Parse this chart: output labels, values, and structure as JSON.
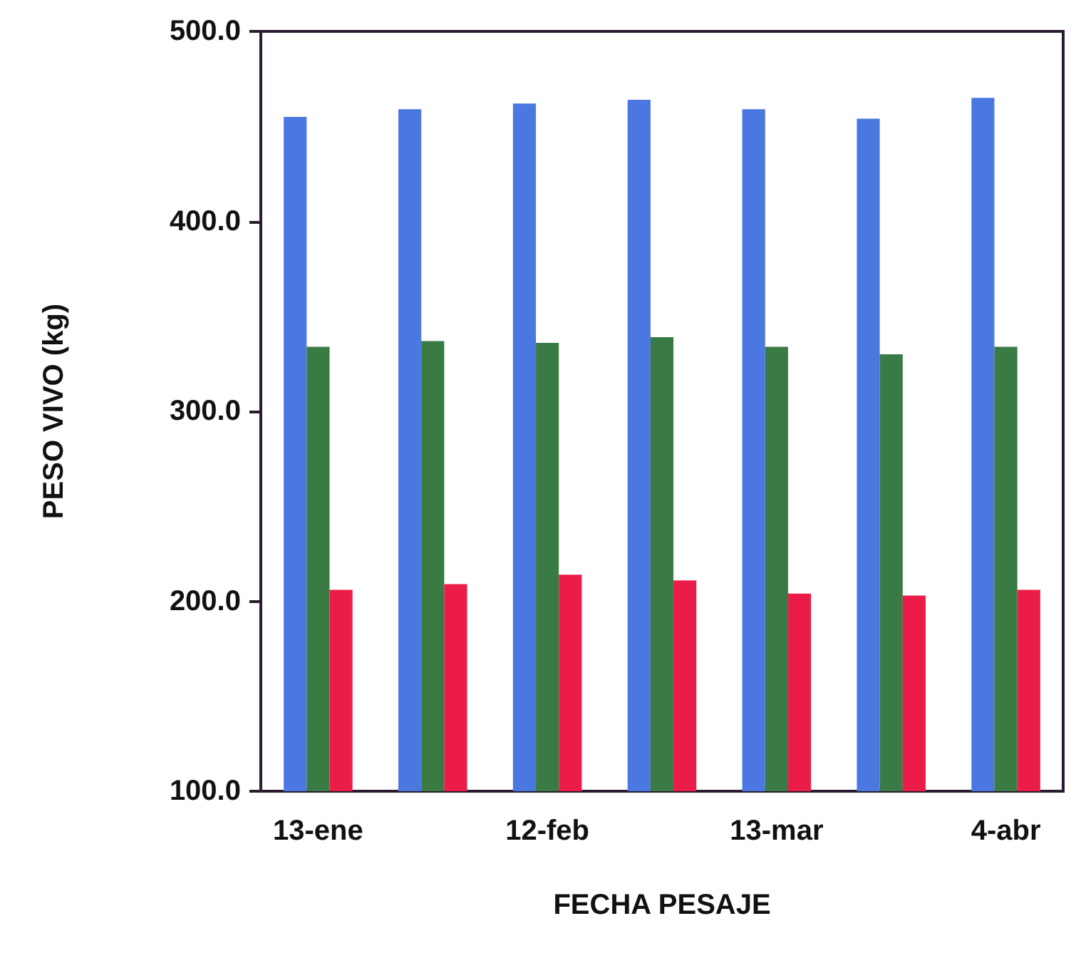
{
  "chart_data": {
    "type": "bar",
    "xlabel": "FECHA PESAJE",
    "ylabel": "PESO VIVO (kg)",
    "categories": [
      "13-ene",
      null,
      "12-feb",
      null,
      "13-mar",
      null,
      "4-abr"
    ],
    "series": [
      {
        "color": "#4a78e0",
        "values": [
          455,
          459,
          462,
          464,
          459,
          454,
          465
        ]
      },
      {
        "color": "#3a7a45",
        "values": [
          334,
          337,
          336,
          339,
          334,
          330,
          334
        ]
      },
      {
        "color": "#ec1c48",
        "values": [
          206,
          209,
          214,
          211,
          204,
          203,
          206
        ]
      }
    ],
    "ylim": [
      100,
      500
    ],
    "yticks": [
      {
        "value": 100,
        "label": "100.0"
      },
      {
        "value": 200,
        "label": "200.0"
      },
      {
        "value": 300,
        "label": "300.0"
      },
      {
        "value": 400,
        "label": "400.0"
      },
      {
        "value": 500,
        "label": "500.0"
      }
    ],
    "grid": false
  }
}
